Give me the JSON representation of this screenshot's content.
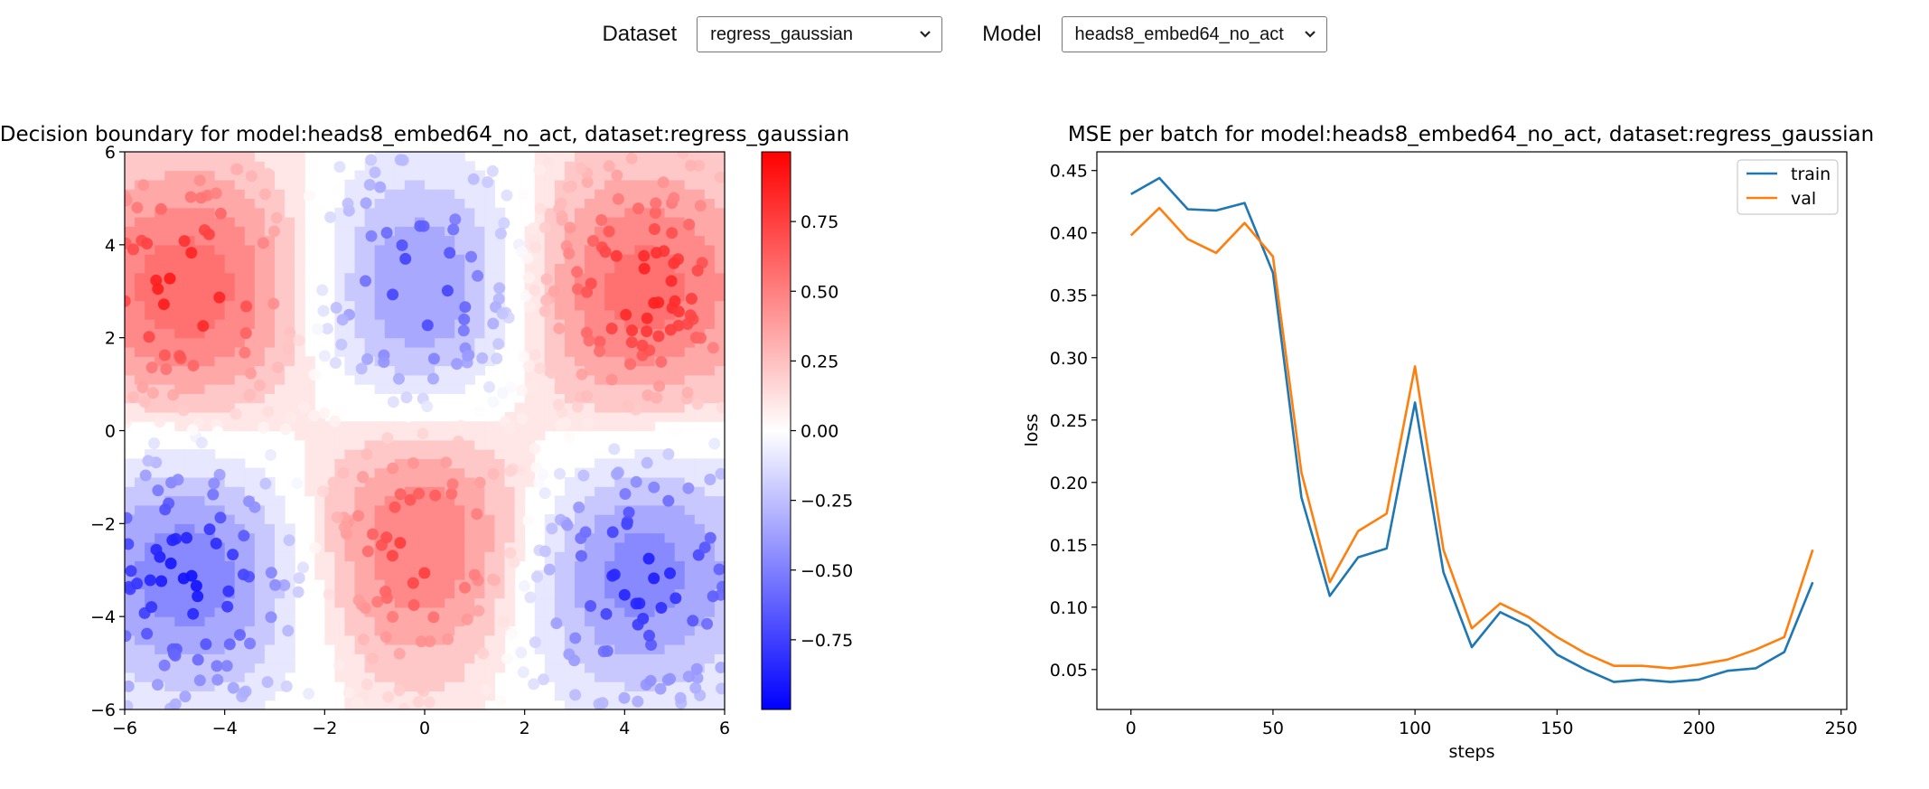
{
  "controls": {
    "dataset_label": "Dataset",
    "dataset_value": "regress_gaussian",
    "model_label": "Model",
    "model_value": "heads8_embed64_no_act"
  },
  "chart_data": [
    {
      "type": "heatmap",
      "title": "Decision boundary for model:heads8_embed64_no_act, dataset:regress_gaussian",
      "xlabel": "",
      "ylabel": "",
      "xlim": [
        -6,
        6
      ],
      "ylim": [
        -6,
        6
      ],
      "xticks": [
        -6,
        -4,
        -2,
        0,
        2,
        4,
        6
      ],
      "yticks": [
        -6,
        -4,
        -2,
        0,
        2,
        4,
        6
      ],
      "colorbar": {
        "colormap": "bwr",
        "range": [
          -1,
          1
        ],
        "ticks": [
          0.75,
          0.5,
          0.25,
          0.0,
          -0.25,
          -0.5,
          -0.75
        ],
        "tick_labels": [
          "0.75",
          "0.50",
          "0.25",
          "0.00",
          "−0.25",
          "−0.50",
          "−0.75"
        ]
      },
      "blobs": [
        {
          "center": [
            -4.5,
            3
          ],
          "sign": 1
        },
        {
          "center": [
            0,
            3
          ],
          "sign": -1
        },
        {
          "center": [
            4,
            3
          ],
          "sign": 1
        },
        {
          "center": [
            -4.5,
            -3
          ],
          "sign": -1
        },
        {
          "center": [
            0,
            -2.5
          ],
          "sign": 1
        },
        {
          "center": [
            4,
            -3
          ],
          "sign": -1
        }
      ],
      "colors": {
        "positive": "#ff0000",
        "negative": "#0000ff"
      }
    },
    {
      "type": "line",
      "title": "MSE per batch for model:heads8_embed64_no_act, dataset:regress_gaussian",
      "xlabel": "steps",
      "ylabel": "loss",
      "xlim": [
        -12,
        252
      ],
      "ylim": [
        0.018,
        0.465
      ],
      "xticks": [
        0,
        50,
        100,
        150,
        200,
        250
      ],
      "yticks": [
        0.05,
        0.1,
        0.15,
        0.2,
        0.25,
        0.3,
        0.35,
        0.4,
        0.45
      ],
      "ytick_labels": [
        "0.05",
        "0.10",
        "0.15",
        "0.20",
        "0.25",
        "0.30",
        "0.35",
        "0.40",
        "0.45"
      ],
      "legend": "top-right",
      "x": [
        0,
        10,
        20,
        30,
        40,
        50,
        60,
        70,
        80,
        90,
        100,
        110,
        120,
        130,
        140,
        150,
        160,
        170,
        180,
        190,
        200,
        210,
        220,
        230,
        240
      ],
      "series": [
        {
          "name": "train",
          "color": "#1f77b4",
          "values": [
            0.431,
            0.444,
            0.419,
            0.418,
            0.424,
            0.368,
            0.188,
            0.109,
            0.14,
            0.147,
            0.264,
            0.128,
            0.068,
            0.096,
            0.085,
            0.062,
            0.05,
            0.04,
            0.042,
            0.04,
            0.042,
            0.049,
            0.051,
            0.064,
            0.12
          ]
        },
        {
          "name": "val",
          "color": "#ff7f0e",
          "values": [
            0.398,
            0.42,
            0.395,
            0.384,
            0.408,
            0.381,
            0.208,
            0.12,
            0.161,
            0.175,
            0.293,
            0.146,
            0.083,
            0.103,
            0.092,
            0.076,
            0.063,
            0.053,
            0.053,
            0.051,
            0.054,
            0.058,
            0.066,
            0.076,
            0.146
          ]
        }
      ]
    }
  ]
}
